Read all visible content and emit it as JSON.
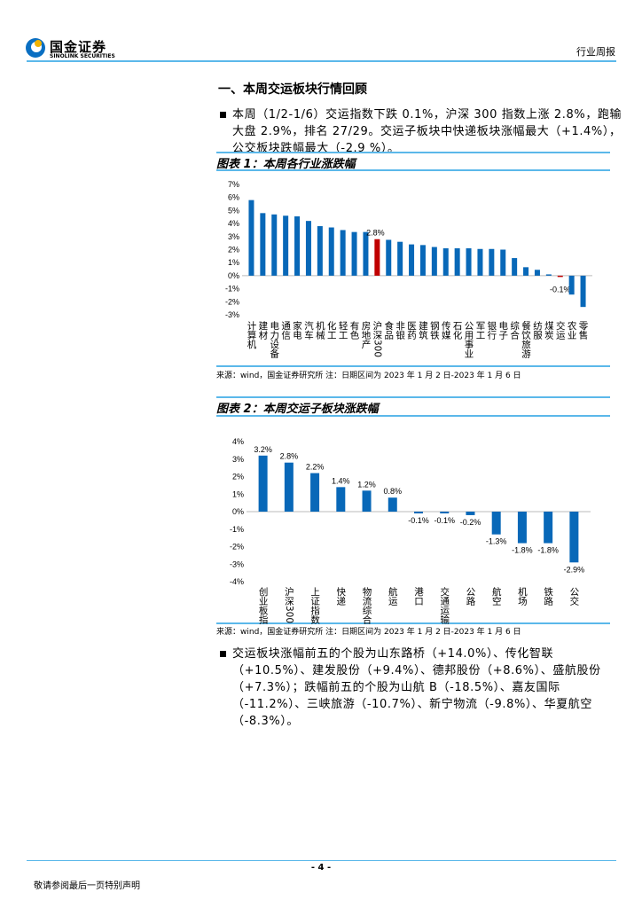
{
  "header": {
    "logo_cn": "国金证券",
    "logo_en": "SINOLINK SECURITIES",
    "report_type": "行业周报"
  },
  "section_title": "一、本周交运板块行情回顾",
  "para1": "本周（1/2-1/6）交运指数下跌 0.1%，沪深 300 指数上涨 2.8%，跑输大盘 2.9%，排名 27/29。交运子板块中快递板块涨幅最大（+1.4%），公交板块跌幅最大（-2.9 %）。",
  "para2": "交运板块涨幅前五的个股为山东路桥（+14.0%）、传化智联（+10.5%）、建发股份（+9.4%）、德邦股份（+8.6%）、盛航股份（+7.3%）；跌幅前五的个股为山航 B（-18.5%）、嘉友国际（-11.2%）、三峡旅游（-10.7%）、新宁物流（-9.8%）、华夏航空（-8.3%）。",
  "chart_data": [
    {
      "type": "bar",
      "title": "图表 1：本周各行业涨跌幅",
      "source": "来源：wind，国金证券研究所 注：日期区间为 2023 年 1 月 2 日-2023 年 1 月 6 日",
      "categories": [
        "计算机",
        "建材",
        "电力设备",
        "通信",
        "家电",
        "汽车",
        "机械",
        "化工",
        "轻工",
        "有色",
        "房地产",
        "沪深300",
        "食品",
        "非银",
        "医药",
        "建筑",
        "钢铁",
        "传媒",
        "石化",
        "公用事业",
        "军工",
        "银行",
        "电子",
        "综合",
        "餐饮旅游",
        "纺服",
        "煤炭",
        "交运",
        "农业",
        "零售"
      ],
      "values": [
        5.8,
        4.8,
        4.7,
        4.6,
        4.55,
        4.2,
        3.8,
        3.7,
        3.5,
        3.35,
        3.35,
        2.8,
        2.75,
        2.6,
        2.4,
        2.35,
        2.2,
        2.1,
        2.1,
        2.1,
        2.05,
        2.05,
        2.0,
        1.35,
        0.65,
        0.45,
        0.1,
        -0.1,
        -1.45,
        -2.4
      ],
      "highlight": {
        "沪深300": "2.8%",
        "交运": "-0.1%"
      },
      "yticks": [
        "7%",
        "6%",
        "5%",
        "4%",
        "3%",
        "2%",
        "1%",
        "0%",
        "-1%",
        "-2%",
        "-3%"
      ],
      "ylim": [
        -3,
        7
      ],
      "bar_color": "#0868b8",
      "highlight_color": "#c00000"
    },
    {
      "type": "bar",
      "title": "图表 2：本周交运子板块涨跌幅",
      "source": "来源：wind，国金证券研究所 注：日期区间为 2023 年 1 月 2 日-2023 年 1 月 6 日",
      "categories": [
        "创业板指",
        "沪深300",
        "上证指数",
        "快递",
        "物流综合",
        "航运",
        "港口",
        "交通运输",
        "公路",
        "航空",
        "机场",
        "铁路",
        "公交"
      ],
      "values": [
        3.2,
        2.8,
        2.2,
        1.4,
        1.2,
        0.8,
        -0.1,
        -0.1,
        -0.2,
        -1.3,
        -1.8,
        -1.8,
        -2.9
      ],
      "labels": [
        "3.2%",
        "2.8%",
        "2.2%",
        "1.4%",
        "1.2%",
        "0.8%",
        "-0.1%",
        "-0.1%",
        "-0.2%",
        "-1.3%",
        "-1.8%",
        "-1.8%",
        "-2.9%"
      ],
      "yticks": [
        "4%",
        "3%",
        "2%",
        "1%",
        "0%",
        "-1%",
        "-2%",
        "-3%",
        "-4%"
      ],
      "ylim": [
        -4,
        4
      ],
      "bar_color": "#0868b8"
    }
  ],
  "footer": {
    "page": "- 4 -",
    "disclaimer": "敬请参阅最后一页特别声明"
  }
}
